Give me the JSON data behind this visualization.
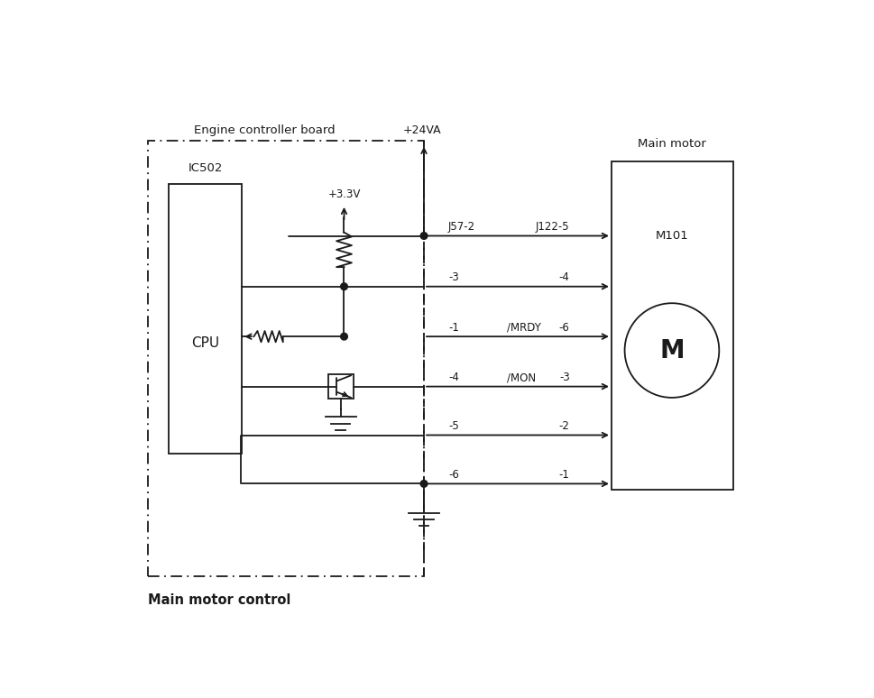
{
  "title": "Main motor control",
  "bg_color": "#ffffff",
  "line_color": "#1a1a1a",
  "fig_width": 9.69,
  "fig_height": 7.74,
  "dpi": 100,
  "board_label": "Engine controller board",
  "ic_label": "IC502",
  "cpu_label": "CPU",
  "motor_label": "Main motor",
  "m101_label": "M101",
  "m_label": "M",
  "v24_label": "+24VA",
  "v33_label": "+3.3V",
  "caption": "Main motor control",
  "rows": [
    {
      "y": 5.55,
      "left_pin": "J57-2",
      "right_pin": "J122-5",
      "sig": "",
      "has_dot": true
    },
    {
      "y": 4.82,
      "left_pin": "-3",
      "right_pin": "-4",
      "sig": "",
      "has_dot": false
    },
    {
      "y": 4.1,
      "left_pin": "-1",
      "right_pin": "-6",
      "sig": "/MRDY",
      "has_dot": false,
      "arrow_left": true
    },
    {
      "y": 3.38,
      "left_pin": "-4",
      "right_pin": "-3",
      "sig": "/MON",
      "has_dot": false,
      "transistor": true
    },
    {
      "y": 2.68,
      "left_pin": "-5",
      "right_pin": "-2",
      "sig": "",
      "has_dot": false
    },
    {
      "y": 1.98,
      "left_pin": "-6",
      "right_pin": "-1",
      "sig": "",
      "has_dot": true
    }
  ]
}
